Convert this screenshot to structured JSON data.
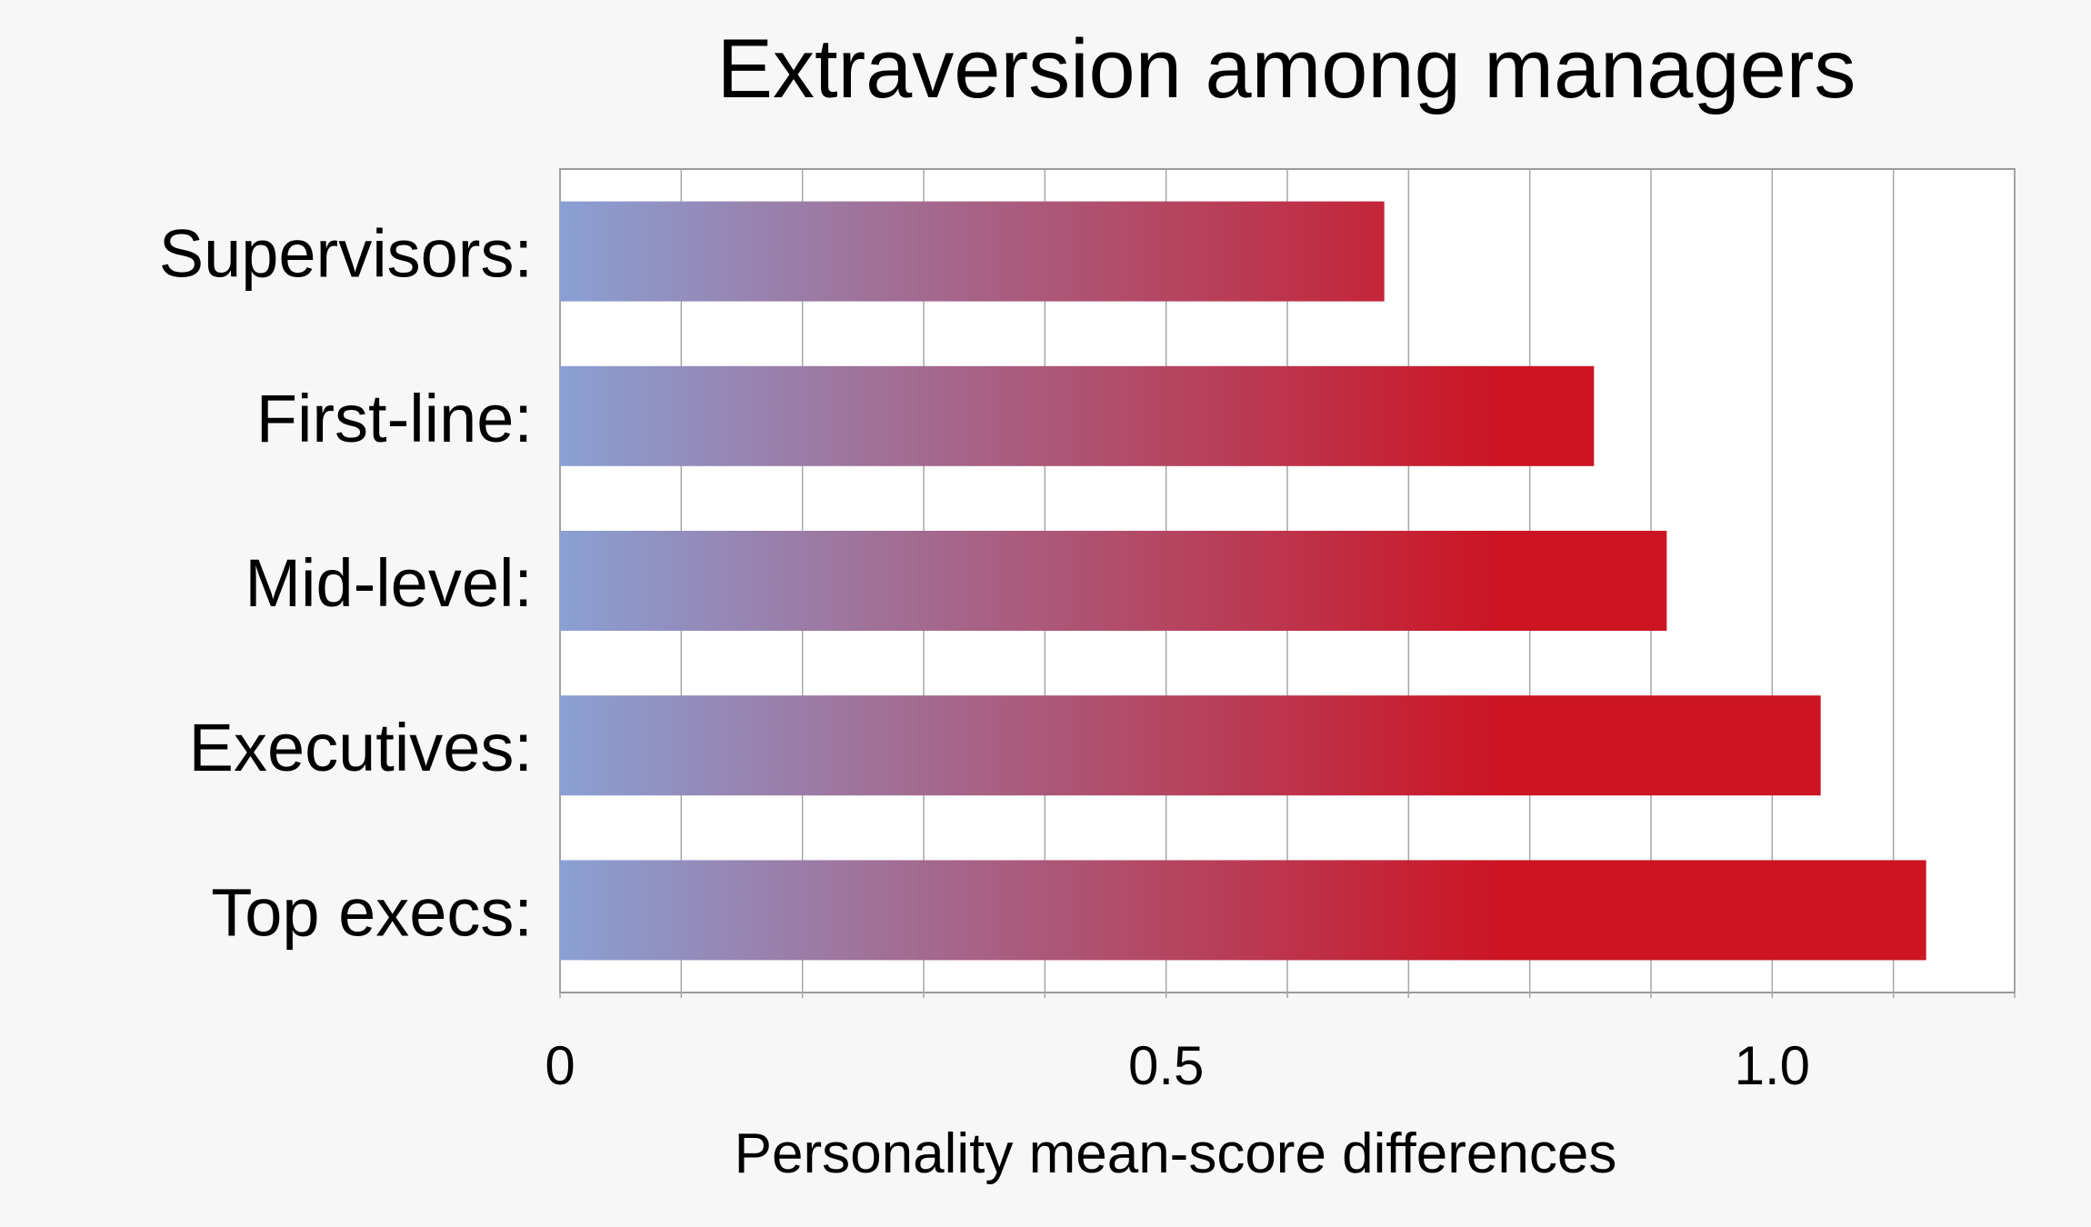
{
  "chart_data": {
    "type": "bar",
    "orientation": "horizontal",
    "title": "Extraversion among managers",
    "xlabel": "Personality mean-score differences",
    "ylabel": "",
    "categories": [
      "Supervisors:",
      "First-line:",
      "Mid-level:",
      "Executives:",
      "Top execs:"
    ],
    "values": [
      0.68,
      0.853,
      0.913,
      1.04,
      1.127
    ],
    "xlim": [
      0,
      1.2
    ],
    "xticks": [
      {
        "value": 0,
        "label": "0"
      },
      {
        "value": 0.5,
        "label": "0.5"
      },
      {
        "value": 1.0,
        "label": "1.0"
      }
    ],
    "minor_grid_step": 0.1,
    "grid": true,
    "legend": "none",
    "bar_gradient": {
      "start": "#8aa0d4",
      "end": "#cc1423"
    },
    "colors": {
      "background": "#f7f7f7",
      "plot_background": "#ffffff",
      "grid": "#a6a6a6",
      "frame": "#9a9a9a",
      "text": "#000000"
    }
  }
}
